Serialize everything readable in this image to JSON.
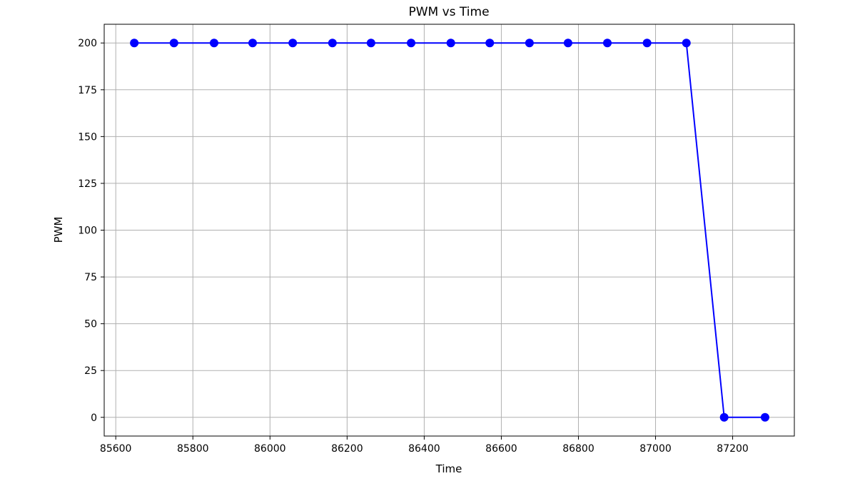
{
  "chart_data": {
    "type": "line",
    "title": "PWM vs Time",
    "xlabel": "Time",
    "ylabel": "PWM",
    "xlim": [
      85570,
      87360
    ],
    "ylim": [
      -10,
      210
    ],
    "x_ticks": [
      85600,
      85800,
      86000,
      86200,
      86400,
      86600,
      86800,
      87000,
      87200
    ],
    "y_ticks": [
      0,
      25,
      50,
      75,
      100,
      125,
      150,
      175,
      200
    ],
    "grid": true,
    "series": [
      {
        "color": "#0000ff",
        "marker": "circle",
        "x": [
          85648,
          85751,
          85855,
          85955,
          86059,
          86162,
          86262,
          86366,
          86469,
          86570,
          86673,
          86773,
          86875,
          86978,
          87080,
          87178,
          87284
        ],
        "y": [
          200,
          200,
          200,
          200,
          200,
          200,
          200,
          200,
          200,
          200,
          200,
          200,
          200,
          200,
          200,
          0,
          0
        ]
      }
    ]
  }
}
